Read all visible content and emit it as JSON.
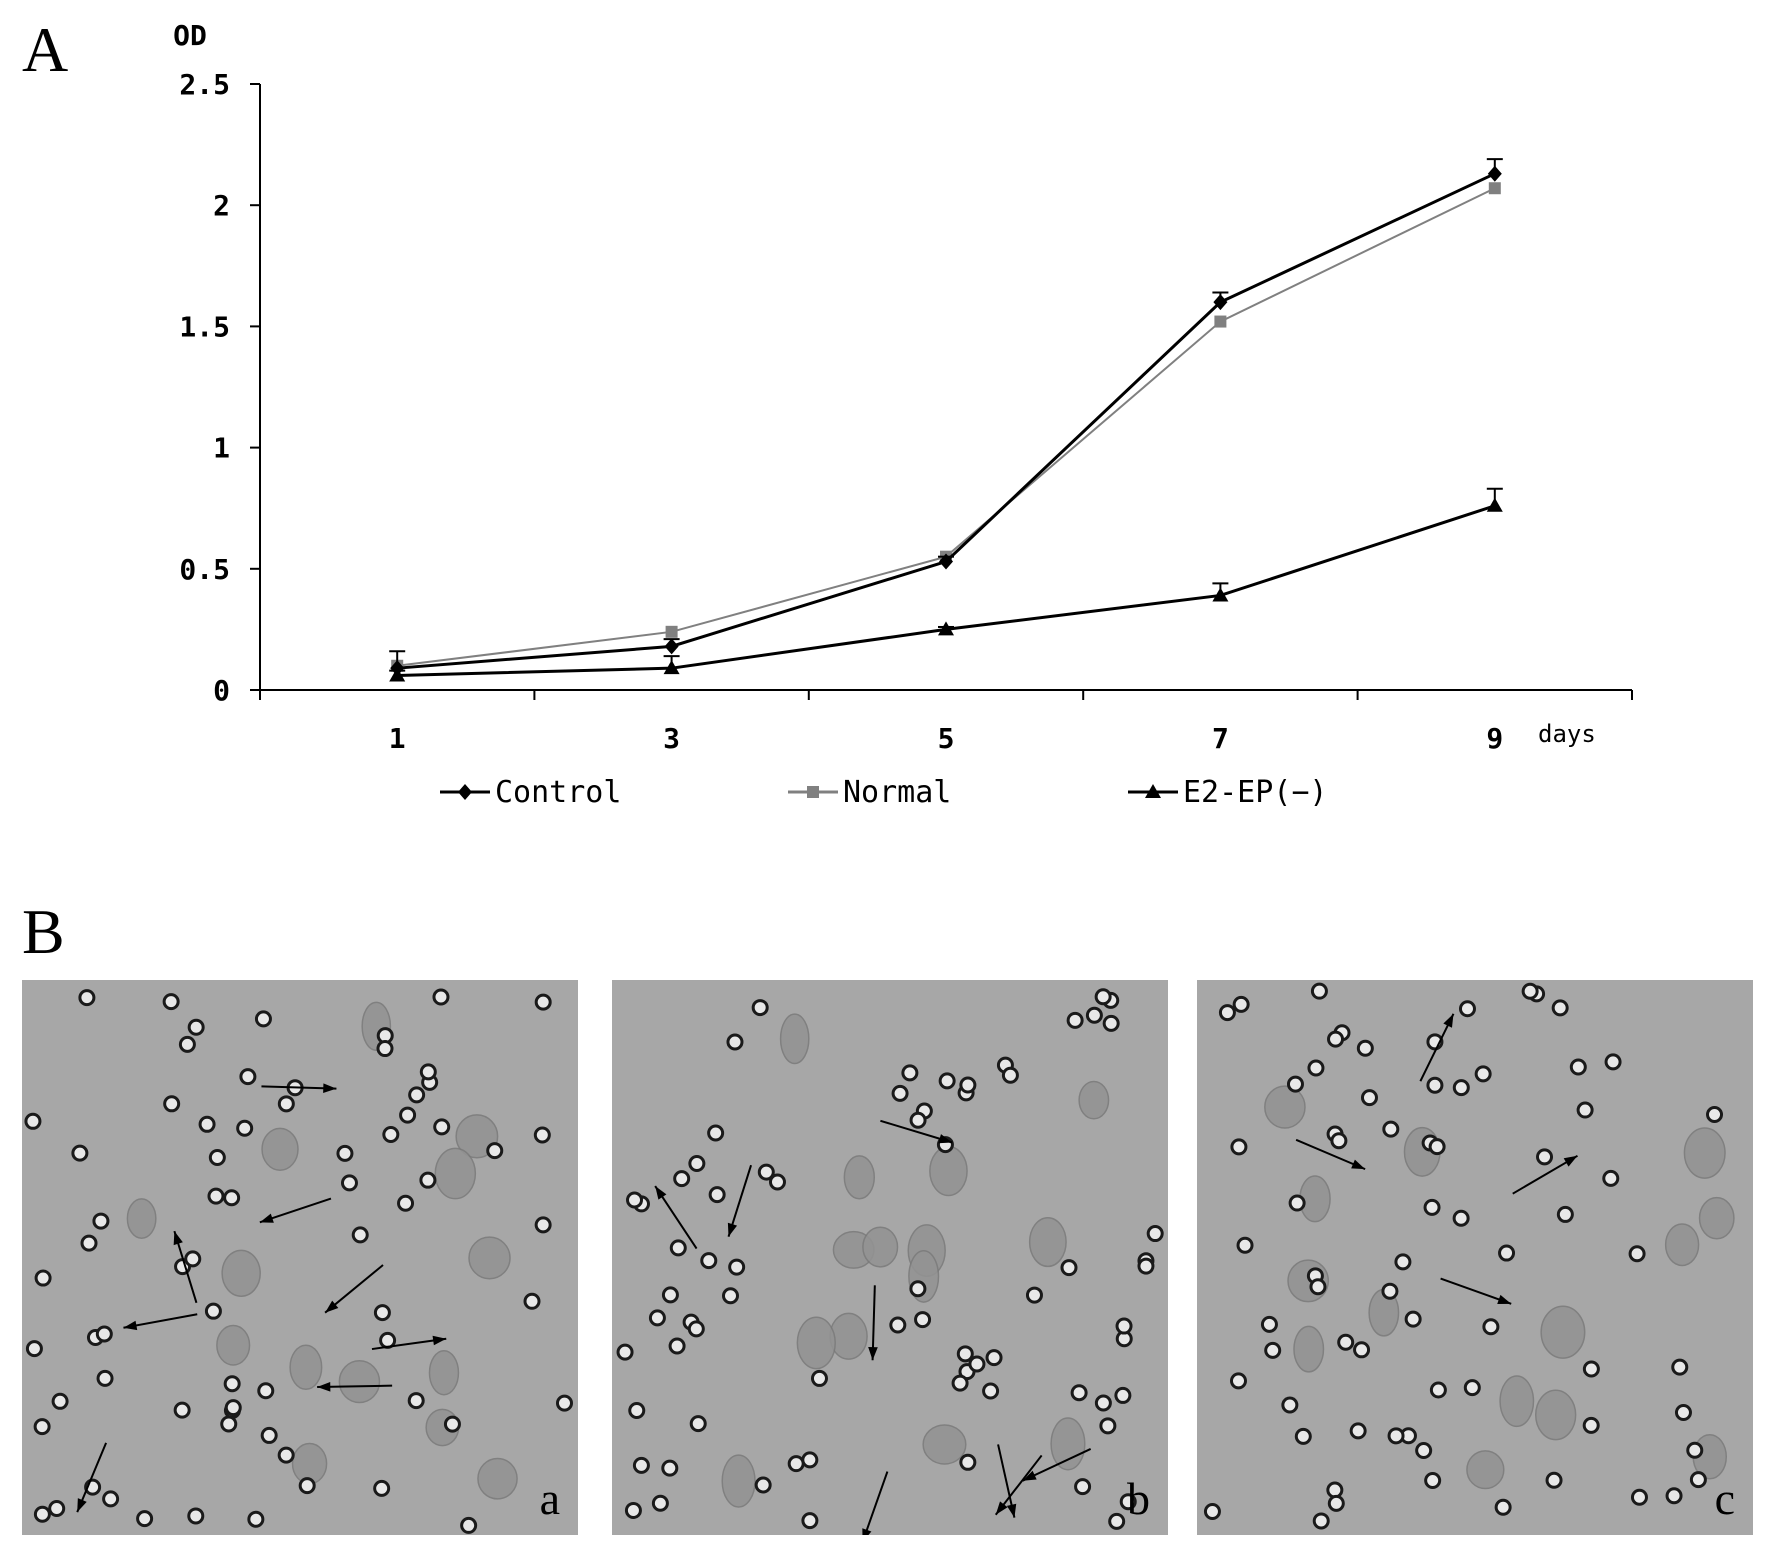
{
  "panel_a_label": "A",
  "panel_b_label": "B",
  "chart_data": {
    "type": "line",
    "ylabel": "OD",
    "xlabel": "days",
    "categories": [
      "1",
      "3",
      "5",
      "7",
      "9"
    ],
    "x": [
      1,
      3,
      5,
      7,
      9
    ],
    "xlim": [
      0,
      10
    ],
    "ylim": [
      0,
      2.5
    ],
    "yticks": [
      "0",
      "0.5",
      "1",
      "1.5",
      "2",
      "2.5"
    ],
    "grid": false,
    "legend_position": "bottom",
    "series": [
      {
        "name": "Control",
        "values": [
          0.09,
          0.18,
          0.53,
          1.6,
          2.13
        ],
        "errors": [
          0.07,
          0.03,
          0.02,
          0.04,
          0.06
        ],
        "marker": "diamond",
        "color": "#000000"
      },
      {
        "name": "Normal",
        "values": [
          0.1,
          0.24,
          0.55,
          1.52,
          2.07
        ],
        "errors": [
          0,
          0,
          0,
          0,
          0
        ],
        "marker": "square",
        "color": "#808080"
      },
      {
        "name": "E2-EP(−)",
        "values": [
          0.06,
          0.09,
          0.25,
          0.39,
          0.76
        ],
        "errors": [
          0.02,
          0.05,
          0.01,
          0.05,
          0.07
        ],
        "marker": "triangle",
        "color": "#000000"
      }
    ]
  },
  "micrographs": [
    {
      "label": "a"
    },
    {
      "label": "b"
    },
    {
      "label": "c"
    }
  ]
}
